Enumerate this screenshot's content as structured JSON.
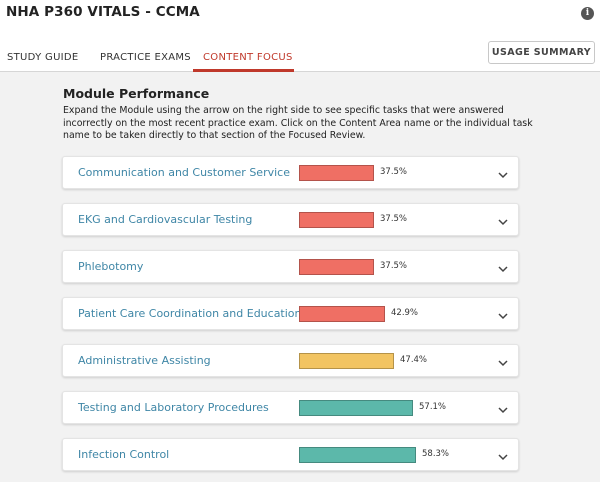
{
  "header": {
    "title": "NHA P360 VITALS - CCMA",
    "info_icon": "info-icon",
    "tabs": [
      {
        "label": "STUDY GUIDE",
        "active": false
      },
      {
        "label": "PRACTICE EXAMS",
        "active": false
      },
      {
        "label": "CONTENT FOCUS",
        "active": true
      }
    ],
    "usage_button": "USAGE SUMMARY"
  },
  "module_performance": {
    "title": "Module Performance",
    "description": "Expand the Module using the arrow on the right side to see specific tasks that were answered incorrectly on the most recent practice exam. Click on the Content Area name or the individual task name to be taken directly to that section of the Focused Review.",
    "modules": [
      {
        "name": "Communication and Customer Service",
        "percent": 37.5,
        "percent_label": "37.5%",
        "color": "#ef6f64"
      },
      {
        "name": "EKG and Cardiovascular Testing",
        "percent": 37.5,
        "percent_label": "37.5%",
        "color": "#ef6f64"
      },
      {
        "name": "Phlebotomy",
        "percent": 37.5,
        "percent_label": "37.5%",
        "color": "#ef6f64"
      },
      {
        "name": "Patient Care Coordination and Education",
        "percent": 42.9,
        "percent_label": "42.9%",
        "color": "#ef6f64"
      },
      {
        "name": "Administrative Assisting",
        "percent": 47.4,
        "percent_label": "47.4%",
        "color": "#f2c462"
      },
      {
        "name": "Testing and Laboratory Procedures",
        "percent": 57.1,
        "percent_label": "57.1%",
        "color": "#5cb8aa"
      },
      {
        "name": "Infection Control",
        "percent": 58.3,
        "percent_label": "58.3%",
        "color": "#5cb8aa"
      }
    ]
  },
  "colors": {
    "accent": "#c0392b",
    "link": "#3f86a6",
    "low": "#ef6f64",
    "mid": "#f2c462",
    "high": "#5cb8aa"
  }
}
